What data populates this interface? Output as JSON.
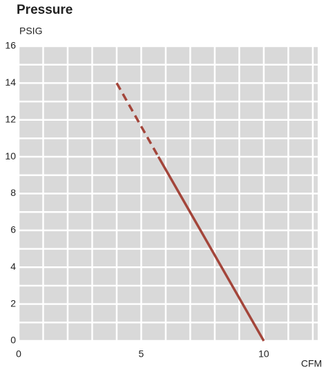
{
  "chart_data": {
    "type": "line",
    "title": "Pressure",
    "y_label": "PSIG",
    "x_label": "CFM",
    "series": [
      {
        "color": "#a3453a",
        "style": "dashed",
        "x": [
          4,
          5.7
        ],
        "values": [
          14,
          10
        ]
      },
      {
        "color": "#a3453a",
        "style": "solid",
        "x": [
          5.7,
          10
        ],
        "values": [
          10,
          0
        ]
      }
    ],
    "xlim": [
      0,
      12.2
    ],
    "ylim": [
      0,
      16
    ],
    "xticks": [
      0,
      5,
      10
    ],
    "yticks": [
      0,
      2,
      4,
      6,
      8,
      10,
      12,
      14,
      16
    ],
    "xgrid": [
      0,
      1,
      2,
      3,
      4,
      5,
      6,
      7,
      8,
      9,
      10,
      11,
      12
    ],
    "ygrid": [
      0,
      1,
      2,
      3,
      4,
      5,
      6,
      7,
      8,
      9,
      10,
      11,
      12,
      13,
      14,
      15,
      16
    ],
    "grid": true,
    "background": "#d9d9d9"
  }
}
